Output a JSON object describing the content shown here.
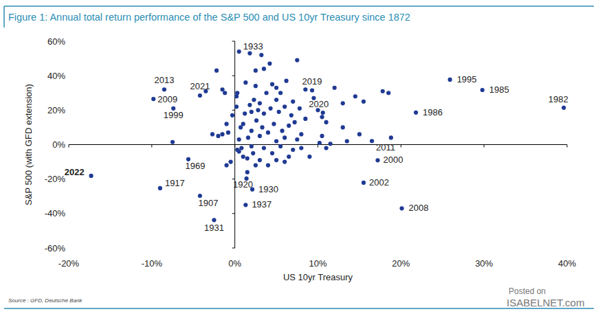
{
  "chart_data": {
    "type": "scatter",
    "title": "Figure 1: Annual total return performance of the S&P 500 and US 10yr Treasury since 1872",
    "x_label": "US 10yr Treasury",
    "y_label": "S&P 500 (with GFD extension)",
    "source": "Source : GFD, Deutsche Bank",
    "watermark": [
      "Posted on",
      "ISABELNET.com"
    ],
    "color": "#1f3a93",
    "marker": "circle",
    "grid": false,
    "xlim": [
      -20,
      40
    ],
    "ylim": [
      -60,
      60
    ],
    "xticks": [
      {
        "value": -20,
        "label": "-20%"
      },
      {
        "value": -10,
        "label": "-10%"
      },
      {
        "value": 0,
        "label": "0%"
      },
      {
        "value": 10,
        "label": "10%"
      },
      {
        "value": 20,
        "label": "20%"
      },
      {
        "value": 30,
        "label": "30%"
      },
      {
        "value": 40,
        "label": "40%"
      }
    ],
    "yticks": [
      {
        "value": -60,
        "label": "-60%"
      },
      {
        "value": -40,
        "label": "-40%"
      },
      {
        "value": -20,
        "label": "-20%"
      },
      {
        "value": 0,
        "label": "0%"
      },
      {
        "value": 20,
        "label": "20%"
      },
      {
        "value": 40,
        "label": "40%"
      },
      {
        "value": 60,
        "label": "60%"
      }
    ],
    "x": [
      0.5,
      -8.5,
      -9.8,
      -4.2,
      -7.4,
      9.3,
      10.6,
      25.9,
      29.8,
      39.6,
      21.8,
      16.5,
      17.2,
      15.5,
      20.1,
      -17.3,
      -9.0,
      -4.2,
      -5.6,
      -2.5,
      1.4,
      2.1,
      1.3,
      -7.5,
      -3.5,
      -2.2,
      -1.2,
      -1.5,
      -2.7,
      -2,
      -1.5,
      -1,
      -0.8,
      -1,
      -0.5,
      -0.3,
      0.2,
      0.2,
      0.3,
      0.5,
      0.5,
      0.8,
      1,
      1,
      1.2,
      1.3,
      1.5,
      1.5,
      1.6,
      1.8,
      2,
      2,
      2.2,
      2.3,
      2.5,
      2.5,
      2.5,
      2.6,
      2.8,
      3,
      3,
      3,
      3.3,
      3.5,
      3.5,
      3.5,
      3.8,
      4,
      4,
      4.2,
      4.3,
      4.5,
      4.5,
      4.7,
      5,
      5,
      5,
      5,
      5.3,
      5.5,
      5.5,
      5.7,
      6,
      6,
      6,
      6.2,
      6.5,
      6.5,
      6.8,
      7,
      7,
      7.2,
      7.5,
      7.5,
      7.8,
      8,
      8,
      8.5,
      8.5,
      9,
      9.5,
      10,
      10.2,
      10.5,
      10.5,
      11,
      11,
      11.5,
      12,
      13,
      13,
      13.5,
      14.5,
      15,
      15.5,
      17.8,
      18.5,
      18.8,
      0.3,
      0.7,
      2,
      3.2,
      1.8
    ],
    "values": [
      54,
      32,
      26.5,
      28.5,
      21,
      31.5,
      18.5,
      37.7,
      31.7,
      21.4,
      18.6,
      2.1,
      -9.1,
      -22.1,
      -37,
      -18.1,
      -25.3,
      -29.7,
      -8.5,
      -43.8,
      -19.7,
      -26,
      -35,
      1.5,
      31,
      43,
      30,
      32,
      6,
      5,
      6,
      12,
      7,
      -12,
      -10,
      17,
      22,
      28,
      30,
      3,
      -4,
      -2,
      -7,
      12,
      18,
      36,
      -8,
      -16,
      4,
      23,
      8,
      19,
      -5,
      26,
      34,
      43,
      -12,
      14,
      20,
      -9,
      24,
      5,
      10,
      -2,
      18,
      44,
      30,
      -12,
      7,
      47,
      21,
      -5,
      35,
      12,
      2,
      26,
      33,
      -9,
      19,
      -1,
      30,
      8,
      -10,
      4,
      22,
      37,
      11,
      -7,
      17,
      -3,
      25,
      13,
      49,
      3,
      21,
      -2,
      6,
      15,
      32,
      -7,
      27,
      20,
      1,
      5,
      16,
      13,
      -2,
      0.5,
      33,
      10,
      24,
      2,
      28,
      6,
      25,
      31,
      30,
      4,
      -3,
      10,
      -1,
      52,
      53
    ],
    "point_labels": [
      "1933",
      "2013",
      "2009",
      "2021",
      "1999",
      "2019",
      "2020",
      "1995",
      "1985",
      "1982",
      "1986",
      "2011",
      "2000",
      "2002",
      "2008",
      "2022",
      "1917",
      "1907",
      "1969",
      "1931",
      "1920",
      "1930",
      "1937",
      null,
      null,
      null,
      null,
      null,
      null,
      null,
      null,
      null,
      null,
      null,
      null,
      null,
      null,
      null,
      null,
      null,
      null,
      null,
      null,
      null,
      null,
      null,
      null,
      null,
      null,
      null,
      null,
      null,
      null,
      null,
      null,
      null,
      null,
      null,
      null,
      null,
      null,
      null,
      null,
      null,
      null,
      null,
      null,
      null,
      null,
      null,
      null,
      null,
      null,
      null,
      null,
      null,
      null,
      null,
      null,
      null,
      null,
      null,
      null,
      null,
      null,
      null,
      null,
      null,
      null,
      null,
      null,
      null,
      null,
      null,
      null,
      null,
      null,
      null,
      null,
      null,
      null,
      null,
      null,
      null,
      null,
      null,
      null,
      null,
      null,
      null,
      null,
      null,
      null,
      null,
      null,
      null,
      null,
      null,
      null,
      null,
      null,
      null,
      null
    ]
  }
}
